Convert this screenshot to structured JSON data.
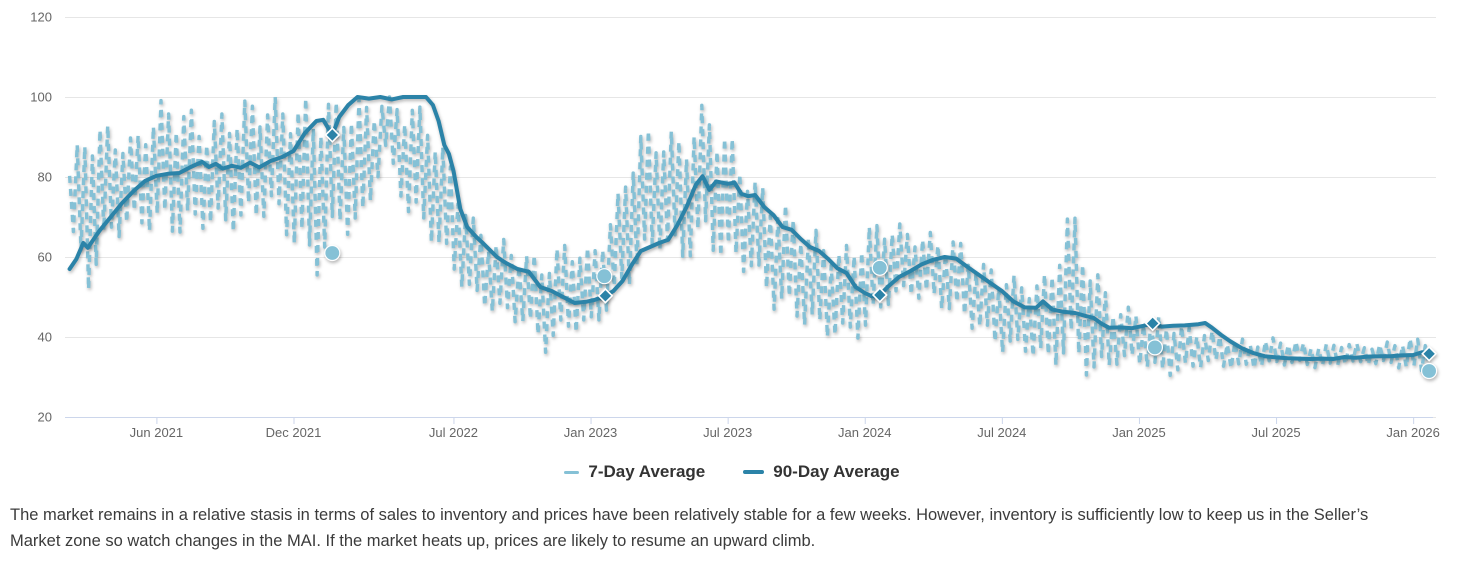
{
  "chart_data": {
    "type": "line",
    "title": "",
    "ylim": [
      20,
      120
    ],
    "y_ticks": [
      20,
      40,
      60,
      80,
      100,
      120
    ],
    "x_unit": "months since Feb 2021 (data runs ~Feb 2021 to late Jan 2026)",
    "x_ticks": [
      [
        "Jun 2021",
        4
      ],
      [
        "Dec 2021",
        10
      ],
      [
        "Jul 2022",
        17
      ],
      [
        "Jan 2023",
        23
      ],
      [
        "Jul 2023",
        29
      ],
      [
        "Jan 2024",
        35
      ],
      [
        "Jul 2024",
        41
      ],
      [
        "Jan 2025",
        47
      ],
      [
        "Jul 2025",
        53
      ],
      [
        "Jan 2026",
        59
      ]
    ],
    "grid": "horizontal",
    "legend_position": "bottom-center",
    "colors": {
      "seven_day": "#85c1d6",
      "ninety_day": "#2b83a8",
      "grid": "#e6e6e6",
      "axis": "#ccd6eb",
      "tick_label": "#666666",
      "legend_text": "#333333",
      "body_text": "#3b3b3b",
      "marker_outline": "#ffffff"
    },
    "series": [
      {
        "name": "7-Day Average",
        "style": "dashed",
        "color": "#85c1d6",
        "marker": "circle",
        "monthly_envelope_high_low": [
          [
            79,
            69
          ],
          [
            96,
            51
          ],
          [
            93,
            64
          ],
          [
            90,
            67
          ],
          [
            99,
            66
          ],
          [
            100,
            65
          ],
          [
            94,
            67
          ],
          [
            97,
            66
          ],
          [
            100,
            67
          ],
          [
            100,
            71
          ],
          [
            100,
            62
          ],
          [
            100,
            55
          ],
          [
            100,
            66
          ],
          [
            100,
            65
          ],
          [
            100,
            86
          ],
          [
            100,
            70
          ],
          [
            96,
            64
          ],
          [
            82,
            55
          ],
          [
            68,
            48
          ],
          [
            65,
            45
          ],
          [
            62,
            43
          ],
          [
            60,
            36
          ],
          [
            65,
            41
          ],
          [
            62,
            41
          ],
          [
            72,
            48
          ],
          [
            92,
            55
          ],
          [
            93,
            62
          ],
          [
            91,
            58
          ],
          [
            99,
            63
          ],
          [
            92,
            57
          ],
          [
            81,
            56
          ],
          [
            76,
            47
          ],
          [
            71,
            44
          ],
          [
            66,
            40
          ],
          [
            62,
            39
          ],
          [
            68,
            40
          ],
          [
            70,
            48
          ],
          [
            67,
            50
          ],
          [
            66,
            48
          ],
          [
            65,
            45
          ],
          [
            59,
            41
          ],
          [
            57,
            36
          ],
          [
            54,
            36
          ],
          [
            56,
            32
          ],
          [
            74,
            34
          ],
          [
            58,
            29
          ],
          [
            48,
            33
          ],
          [
            47,
            33
          ],
          [
            45,
            30
          ],
          [
            43,
            31
          ],
          [
            42,
            33
          ],
          [
            40,
            32
          ],
          [
            39,
            32
          ],
          [
            40,
            33
          ],
          [
            39,
            33
          ],
          [
            38,
            32
          ],
          [
            39,
            33
          ],
          [
            38,
            33
          ],
          [
            39,
            33
          ],
          [
            40,
            31
          ]
        ],
        "snapshots": [
          [
            11.7,
            61
          ],
          [
            23.6,
            55.2
          ],
          [
            35.66,
            57.3
          ],
          [
            47.7,
            37.4
          ],
          [
            59.7,
            31.5
          ]
        ]
      },
      {
        "name": "90-Day Average",
        "style": "solid",
        "color": "#2b83a8",
        "marker": "diamond",
        "points": [
          [
            0.2,
            57
          ],
          [
            0.5,
            59.5
          ],
          [
            0.8,
            63.5
          ],
          [
            1.0,
            62.3
          ],
          [
            1.5,
            66.5
          ],
          [
            2.0,
            70
          ],
          [
            2.5,
            73.5
          ],
          [
            3.0,
            76.5
          ],
          [
            3.5,
            79
          ],
          [
            4.0,
            80.3
          ],
          [
            4.5,
            80.8
          ],
          [
            5.0,
            81
          ],
          [
            5.5,
            82.5
          ],
          [
            6.0,
            83.8
          ],
          [
            6.3,
            82.5
          ],
          [
            6.6,
            83.3
          ],
          [
            6.9,
            82.1
          ],
          [
            7.3,
            82.8
          ],
          [
            7.7,
            82.3
          ],
          [
            8.1,
            83.6
          ],
          [
            8.5,
            82.4
          ],
          [
            9.0,
            84
          ],
          [
            9.5,
            85
          ],
          [
            10.0,
            86.5
          ],
          [
            10.5,
            91
          ],
          [
            11.0,
            94
          ],
          [
            11.3,
            94.3
          ],
          [
            11.7,
            90.5
          ],
          [
            12.0,
            95
          ],
          [
            12.4,
            98
          ],
          [
            12.8,
            100
          ],
          [
            13.3,
            99.6
          ],
          [
            13.8,
            100
          ],
          [
            14.3,
            99.4
          ],
          [
            14.8,
            100
          ],
          [
            15.3,
            100
          ],
          [
            15.8,
            100
          ],
          [
            16.1,
            98
          ],
          [
            16.35,
            94
          ],
          [
            16.6,
            88
          ],
          [
            16.8,
            85.8
          ],
          [
            17.0,
            81.5
          ],
          [
            17.3,
            72
          ],
          [
            17.6,
            67.5
          ],
          [
            18.0,
            65
          ],
          [
            18.3,
            63.4
          ],
          [
            18.9,
            60
          ],
          [
            19.3,
            58.5
          ],
          [
            19.8,
            57
          ],
          [
            20.3,
            56.3
          ],
          [
            20.8,
            52.5
          ],
          [
            21.3,
            51.5
          ],
          [
            21.8,
            50
          ],
          [
            22.3,
            48.5
          ],
          [
            22.8,
            48.8
          ],
          [
            23.2,
            49.3
          ],
          [
            23.65,
            50.3
          ],
          [
            24.0,
            51.5
          ],
          [
            24.4,
            54
          ],
          [
            24.8,
            58
          ],
          [
            25.2,
            61.5
          ],
          [
            25.6,
            62.5
          ],
          [
            26.0,
            63.5
          ],
          [
            26.4,
            64.3
          ],
          [
            26.8,
            68
          ],
          [
            27.2,
            72.5
          ],
          [
            27.6,
            78
          ],
          [
            27.9,
            80.2
          ],
          [
            28.2,
            76.8
          ],
          [
            28.5,
            78.9
          ],
          [
            29.0,
            78.3
          ],
          [
            29.3,
            78.6
          ],
          [
            29.6,
            75.8
          ],
          [
            29.9,
            75.2
          ],
          [
            30.2,
            75.5
          ],
          [
            30.6,
            72.5
          ],
          [
            31.0,
            70.5
          ],
          [
            31.4,
            67.5
          ],
          [
            31.8,
            66.8
          ],
          [
            32.2,
            64.5
          ],
          [
            32.6,
            62.5
          ],
          [
            33.0,
            61.5
          ],
          [
            33.4,
            59.5
          ],
          [
            33.8,
            57.2
          ],
          [
            34.2,
            56
          ],
          [
            34.6,
            52.5
          ],
          [
            35.0,
            51
          ],
          [
            35.3,
            50.2
          ],
          [
            35.66,
            50.5
          ],
          [
            36.0,
            52.5
          ],
          [
            36.5,
            55
          ],
          [
            37.0,
            56.5
          ],
          [
            37.5,
            58.2
          ],
          [
            38.0,
            59.3
          ],
          [
            38.5,
            60
          ],
          [
            39.0,
            59.6
          ],
          [
            39.5,
            57.5
          ],
          [
            40.0,
            55.5
          ],
          [
            40.5,
            53.5
          ],
          [
            41.0,
            51.5
          ],
          [
            41.5,
            48.9
          ],
          [
            42.0,
            47.4
          ],
          [
            42.5,
            47.3
          ],
          [
            42.8,
            48.9
          ],
          [
            43.2,
            46.9
          ],
          [
            43.7,
            46.3
          ],
          [
            44.2,
            46
          ],
          [
            44.7,
            45.2
          ],
          [
            45.0,
            44.8
          ],
          [
            45.4,
            43.2
          ],
          [
            45.7,
            42.3
          ],
          [
            46.2,
            42.4
          ],
          [
            46.7,
            42.2
          ],
          [
            47.2,
            42.8
          ],
          [
            47.6,
            43.4
          ],
          [
            48.0,
            42.6
          ],
          [
            48.5,
            42.8
          ],
          [
            49.0,
            42.9
          ],
          [
            49.6,
            43.2
          ],
          [
            49.9,
            43.5
          ],
          [
            50.2,
            42.3
          ],
          [
            50.6,
            40.5
          ],
          [
            51.0,
            38.9
          ],
          [
            51.5,
            37.2
          ],
          [
            52.0,
            36
          ],
          [
            52.5,
            35.2
          ],
          [
            53.0,
            34.9
          ],
          [
            53.5,
            34.7
          ],
          [
            54.0,
            34.6
          ],
          [
            54.5,
            34.5
          ],
          [
            55.0,
            34.6
          ],
          [
            55.5,
            34.5
          ],
          [
            56.0,
            35
          ],
          [
            56.5,
            34.8
          ],
          [
            57.0,
            35.1
          ],
          [
            57.5,
            35.2
          ],
          [
            58.0,
            35.2
          ],
          [
            58.5,
            35.4
          ],
          [
            59.0,
            35.5
          ],
          [
            59.4,
            36.2
          ],
          [
            59.7,
            35.8
          ]
        ],
        "snapshots": [
          [
            11.7,
            90.5
          ],
          [
            23.65,
            50.3
          ],
          [
            35.66,
            50.5
          ],
          [
            47.6,
            43.4
          ],
          [
            59.7,
            35.8
          ]
        ]
      }
    ]
  },
  "description": "The market remains in a relative stasis in terms of sales to inventory and prices have been relatively stable for a few weeks. However, inventory is sufficiently low to keep us in the Seller’s Market zone so watch changes in the MAI. If the market heats up, prices are likely to resume an upward climb."
}
